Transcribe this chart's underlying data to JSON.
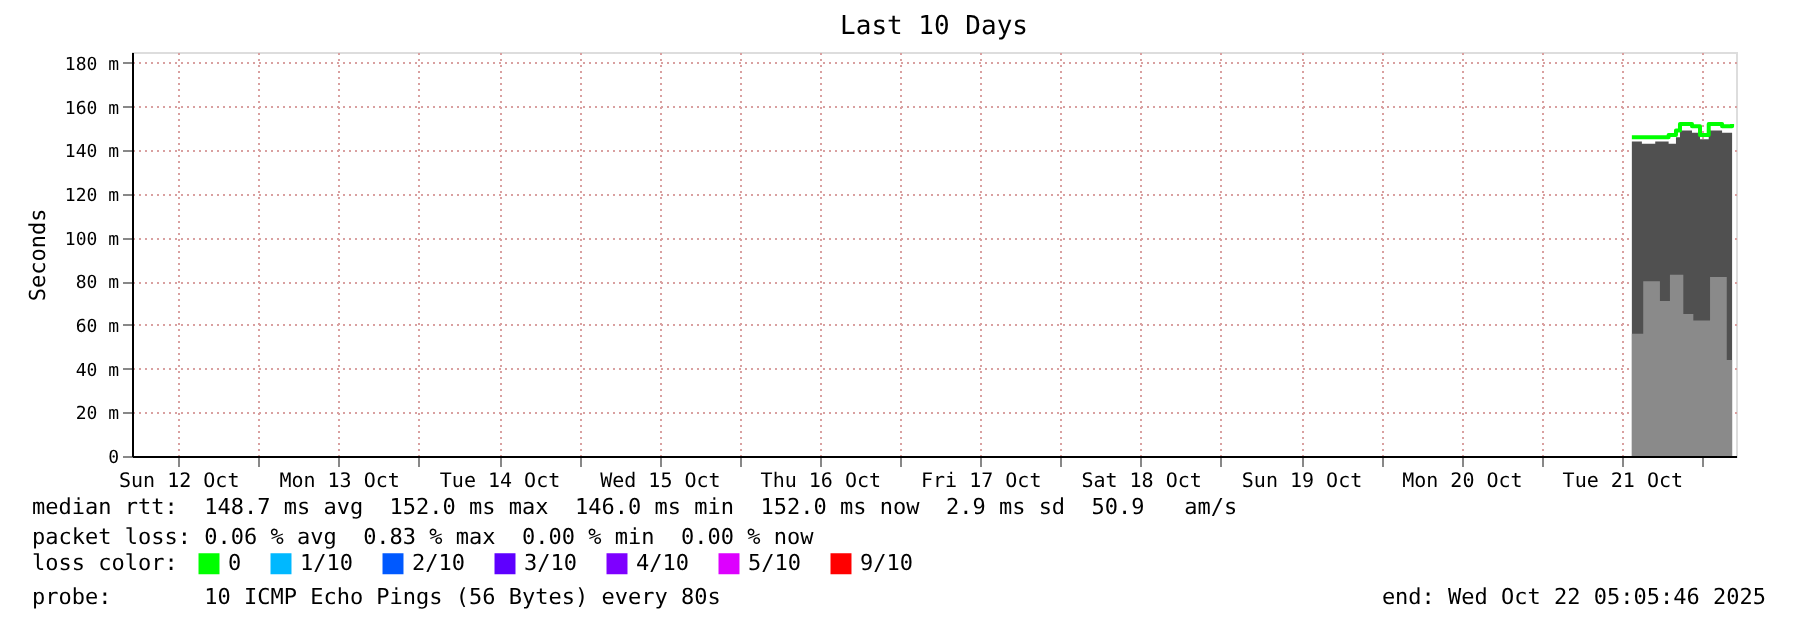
{
  "chart_data": {
    "type": "area",
    "title": "Last 10 Days",
    "ylabel": "Seconds",
    "legend_title": "loss color:",
    "legend": "bottom left",
    "grid": true,
    "xlim": [
      "2025-10-12T05:05",
      "2025-10-22T05:05"
    ],
    "xticks": [
      {
        "value": "2025-10-12T12:00",
        "label": "Sun 12 Oct"
      },
      {
        "value": "2025-10-13T00:00",
        "label": null
      },
      {
        "value": "2025-10-13T12:00",
        "label": "Mon 13 Oct"
      },
      {
        "value": "2025-10-14T00:00",
        "label": null
      },
      {
        "value": "2025-10-14T12:00",
        "label": "Tue 14 Oct"
      },
      {
        "value": "2025-10-15T00:00",
        "label": null
      },
      {
        "value": "2025-10-15T12:00",
        "label": "Wed 15 Oct"
      },
      {
        "value": "2025-10-16T00:00",
        "label": null
      },
      {
        "value": "2025-10-16T12:00",
        "label": "Thu 16 Oct"
      },
      {
        "value": "2025-10-17T00:00",
        "label": null
      },
      {
        "value": "2025-10-17T12:00",
        "label": "Fri 17 Oct"
      },
      {
        "value": "2025-10-18T00:00",
        "label": null
      },
      {
        "value": "2025-10-18T12:00",
        "label": "Sat 18 Oct"
      },
      {
        "value": "2025-10-19T00:00",
        "label": null
      },
      {
        "value": "2025-10-19T12:00",
        "label": "Sun 19 Oct"
      },
      {
        "value": "2025-10-20T00:00",
        "label": null
      },
      {
        "value": "2025-10-20T12:00",
        "label": "Mon 20 Oct"
      },
      {
        "value": "2025-10-21T00:00",
        "label": null
      },
      {
        "value": "2025-10-21T12:00",
        "label": "Tue 21 Oct"
      },
      {
        "value": "2025-10-22T00:00",
        "label": null
      }
    ],
    "ylim": [
      0,
      185
    ],
    "yticks": [
      0,
      {
        "value": 20,
        "label": "20 m"
      },
      {
        "value": 40,
        "label": "40 m"
      },
      {
        "value": 60,
        "label": "60 m"
      },
      {
        "value": 80,
        "label": "80 m"
      },
      {
        "value": 100,
        "label": "100 m"
      },
      {
        "value": 120,
        "label": "120 m"
      },
      {
        "value": 140,
        "label": "140 m"
      },
      {
        "value": 160,
        "label": "160 m"
      },
      {
        "value": 180,
        "label": "180 m"
      }
    ],
    "series": [
      {
        "color": "#505050",
        "x": [
          "2025-10-21T13:30",
          "2025-10-21T15:00",
          "2025-10-21T17:00",
          "2025-10-21T19:00",
          "2025-10-21T20:06",
          "2025-10-21T20:42",
          "2025-10-21T22:30",
          "2025-10-21T23:42",
          "2025-10-22T01:00",
          "2025-10-22T03:00",
          "2025-10-22T04:30"
        ],
        "values": [
          144,
          143,
          144,
          143,
          146,
          149,
          148,
          145,
          149,
          148,
          149
        ]
      },
      {
        "color": "#8a8a8a",
        "x": [
          "2025-10-21T13:30",
          "2025-10-21T15:12",
          "2025-10-21T17:42",
          "2025-10-21T19:12",
          "2025-10-21T21:12",
          "2025-10-21T22:42",
          "2025-10-22T01:12",
          "2025-10-22T03:42",
          "2025-10-22T04:30"
        ],
        "values": [
          56,
          80,
          71,
          83,
          65,
          62,
          82,
          44,
          50
        ]
      },
      {
        "type": "line",
        "name": "0",
        "color": "#00ff00",
        "x": [
          "2025-10-21T13:30",
          "2025-10-21T15:00",
          "2025-10-21T17:00",
          "2025-10-21T19:00",
          "2025-10-21T20:06",
          "2025-10-21T20:42",
          "2025-10-21T22:30",
          "2025-10-21T23:42",
          "2025-10-22T01:00",
          "2025-10-22T03:00",
          "2025-10-22T04:30"
        ],
        "values": [
          146,
          146,
          146,
          147,
          149,
          152,
          151,
          147,
          152,
          151,
          152
        ]
      },
      {
        "name": "1/10",
        "color": "#00b8ff"
      },
      {
        "name": "2/10",
        "color": "#0059ff"
      },
      {
        "name": "3/10",
        "color": "#5e00ff"
      },
      {
        "name": "4/10",
        "color": "#7e00ff"
      },
      {
        "name": "5/10",
        "color": "#dd00ff"
      },
      {
        "name": "9/10",
        "color": "#ff0000"
      }
    ],
    "annotations": [
      "median rtt:  148.7 ms avg  152.0 ms max  146.0 ms min  152.0 ms now  2.9 ms sd  50.9   am/s",
      "packet loss: 0.06 % avg  0.83 % max  0.00 % min  0.00 % now",
      "probe:       10 ICMP Echo Pings (56 Bytes) every 80s",
      "end: Wed Oct 22 05:05:46 2025"
    ]
  }
}
